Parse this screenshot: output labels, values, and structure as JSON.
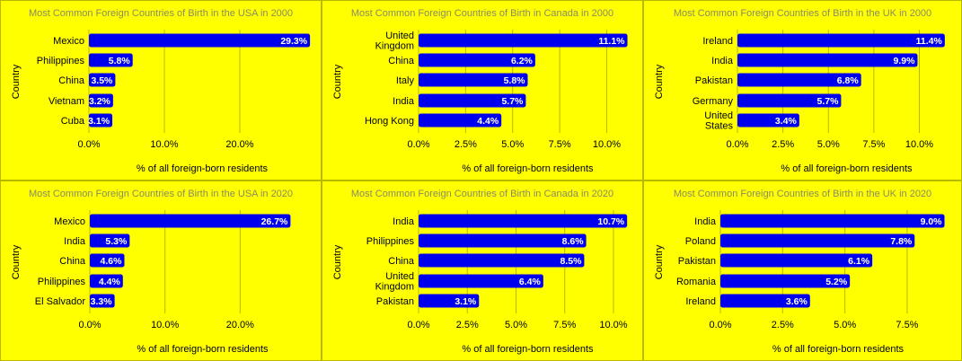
{
  "axis_label_x": "% of all foreign-born residents",
  "axis_label_y": "Country",
  "colors": {
    "background": "#ffff00",
    "bar": "#0000ee",
    "grid": "#b8b800",
    "title": "#8a8a66",
    "label": "#000000",
    "value": "#ffffff"
  },
  "chart_data": [
    {
      "type": "bar",
      "title": "Most Common Foreign Countries of Birth in the USA in 2000",
      "xlabel": "% of all foreign-born residents",
      "ylabel": "Country",
      "categories": [
        "Mexico",
        "Philippines",
        "China",
        "Vietnam",
        "Cuba"
      ],
      "values": [
        29.3,
        5.8,
        3.5,
        3.2,
        3.1
      ],
      "value_labels": [
        "29.3%",
        "5.8%",
        "3.5%",
        "3.2%",
        "3.1%"
      ],
      "ticks": [
        0,
        10,
        20
      ],
      "tick_labels": [
        "0.0%",
        "10.0%",
        "20.0%"
      ],
      "xlim": [
        0,
        30
      ],
      "grid": true
    },
    {
      "type": "bar",
      "title": "Most Common Foreign Countries of Birth in Canada in 2000",
      "xlabel": "% of all foreign-born residents",
      "ylabel": "Country",
      "categories": [
        "United Kingdom",
        "China",
        "Italy",
        "India",
        "Hong Kong"
      ],
      "values": [
        11.1,
        6.2,
        5.8,
        5.7,
        4.4
      ],
      "value_labels": [
        "11.1%",
        "6.2%",
        "5.8%",
        "5.7%",
        "4.4%"
      ],
      "ticks": [
        0,
        2.5,
        5,
        7.5,
        10
      ],
      "tick_labels": [
        "0.0%",
        "2.5%",
        "5.0%",
        "7.5%",
        "10.0%"
      ],
      "xlim": [
        0,
        11.6
      ],
      "grid": true
    },
    {
      "type": "bar",
      "title": "Most Common Foreign Countries of Birth in the UK in 2000",
      "xlabel": "% of all foreign-born residents",
      "ylabel": "Country",
      "categories": [
        "Ireland",
        "India",
        "Pakistan",
        "Germany",
        "United States"
      ],
      "values": [
        11.4,
        9.9,
        6.8,
        5.7,
        3.4
      ],
      "value_labels": [
        "11.4%",
        "9.9%",
        "6.8%",
        "5.7%",
        "3.4%"
      ],
      "ticks": [
        0,
        2.5,
        5,
        7.5,
        10
      ],
      "tick_labels": [
        "0.0%",
        "2.5%",
        "5.0%",
        "7.5%",
        "10.0%"
      ],
      "xlim": [
        0,
        12
      ],
      "grid": true
    },
    {
      "type": "bar",
      "title": "Most Common Foreign Countries of Birth in the USA in 2020",
      "xlabel": "% of all foreign-born residents",
      "ylabel": "Country",
      "categories": [
        "Mexico",
        "India",
        "China",
        "Philippines",
        "El Salvador"
      ],
      "values": [
        26.7,
        5.3,
        4.6,
        4.4,
        3.3
      ],
      "value_labels": [
        "26.7%",
        "5.3%",
        "4.6%",
        "4.4%",
        "3.3%"
      ],
      "ticks": [
        0,
        10,
        20
      ],
      "tick_labels": [
        "0.0%",
        "10.0%",
        "20.0%"
      ],
      "xlim": [
        0,
        30
      ],
      "grid": true
    },
    {
      "type": "bar",
      "title": "Most Common Foreign Countries of Birth in Canada in 2020",
      "xlabel": "% of all foreign-born residents",
      "ylabel": "Country",
      "categories": [
        "India",
        "Philippines",
        "China",
        "United Kingdom",
        "Pakistan"
      ],
      "values": [
        10.7,
        8.6,
        8.5,
        6.4,
        3.1
      ],
      "value_labels": [
        "10.7%",
        "8.6%",
        "8.5%",
        "6.4%",
        "3.1%"
      ],
      "ticks": [
        0,
        2.5,
        5,
        7.5,
        10
      ],
      "tick_labels": [
        "0.0%",
        "2.5%",
        "5.0%",
        "7.5%",
        "10.0%"
      ],
      "xlim": [
        0,
        11.2
      ],
      "grid": true
    },
    {
      "type": "bar",
      "title": "Most Common Foreign Countries of Birth in the UK in 2020",
      "xlabel": "% of all foreign-born residents",
      "ylabel": "Country",
      "categories": [
        "India",
        "Poland",
        "Pakistan",
        "Romania",
        "Ireland"
      ],
      "values": [
        9.0,
        7.8,
        6.1,
        5.2,
        3.6
      ],
      "value_labels": [
        "9.0%",
        "7.8%",
        "6.1%",
        "5.2%",
        "3.6%"
      ],
      "ticks": [
        0,
        2.5,
        5,
        7.5
      ],
      "tick_labels": [
        "0.0%",
        "2.5%",
        "5.0%",
        "7.5%"
      ],
      "xlim": [
        0,
        9.45
      ],
      "grid": true
    }
  ]
}
